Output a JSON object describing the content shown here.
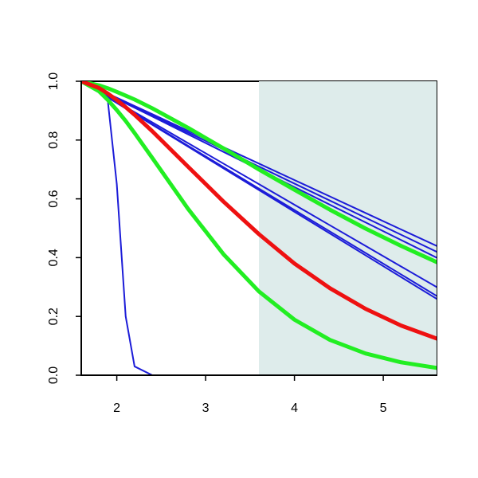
{
  "chart_data": {
    "type": "line",
    "x": [
      1.6,
      1.8,
      1.9,
      2.0,
      2.1,
      2.2,
      2.4,
      2.8,
      3.2,
      3.6,
      4.0,
      4.4,
      4.8,
      5.2,
      5.6
    ],
    "xlim": [
      1.6,
      5.6
    ],
    "xticks": [
      2,
      3,
      4,
      5
    ],
    "ylim": [
      0,
      1
    ],
    "yticks": [
      {
        "value": 0,
        "label": "0.0"
      },
      0.2,
      0.4,
      0.6,
      0.8,
      {
        "value": 1,
        "label": "1.0"
      }
    ],
    "shaded_region": {
      "xlim": [
        3.6,
        5.6
      ],
      "color": "#deeceb"
    },
    "series": [
      {
        "color": "#1c1cd8",
        "values": [
          1,
          0.99,
          0.93,
          0.65,
          0.2,
          0.03,
          0,
          0,
          0,
          0,
          0,
          0,
          0,
          0,
          0
        ]
      },
      {
        "color": "#1c1cd8",
        "values": [
          1,
          0.972,
          0.958,
          0.944,
          0.93,
          0.916,
          0.888,
          0.832,
          0.776,
          0.72,
          0.664,
          0.608,
          0.552,
          0.496,
          0.44
        ]
      },
      {
        "color": "#1c1cd8",
        "values": [
          1,
          0.971,
          0.9565,
          0.942,
          0.9275,
          0.913,
          0.884,
          0.826,
          0.768,
          0.71,
          0.652,
          0.594,
          0.536,
          0.478,
          0.42
        ]
      },
      {
        "color": "#1c1cd8",
        "values": [
          1,
          0.97,
          0.955,
          0.94,
          0.925,
          0.91,
          0.88,
          0.82,
          0.76,
          0.7,
          0.64,
          0.58,
          0.52,
          0.46,
          0.4
        ]
      },
      {
        "color": "#1c1cd8",
        "values": [
          1,
          0.965,
          0.9475,
          0.93,
          0.9125,
          0.895,
          0.86,
          0.79,
          0.72,
          0.65,
          0.58,
          0.51,
          0.44,
          0.37,
          0.3
        ]
      },
      {
        "color": "#1c1cd8",
        "values": [
          1,
          0.9635,
          0.94525,
          0.927,
          0.90875,
          0.8905,
          0.854,
          0.781,
          0.708,
          0.635,
          0.562,
          0.489,
          0.416,
          0.343,
          0.27
        ]
      },
      {
        "color": "#1c1cd8",
        "values": [
          1,
          0.963,
          0.9445,
          0.926,
          0.9075,
          0.889,
          0.852,
          0.778,
          0.704,
          0.63,
          0.556,
          0.482,
          0.408,
          0.334,
          0.26
        ]
      },
      {
        "color": "#22ee22",
        "values": [
          1,
          0.986,
          0.976,
          0.964,
          0.951,
          0.938,
          0.908,
          0.842,
          0.772,
          0.7,
          0.631,
          0.563,
          0.499,
          0.44,
          0.385
        ]
      },
      {
        "color": "#22ee22",
        "values": [
          1,
          0.966,
          0.936,
          0.902,
          0.865,
          0.824,
          0.739,
          0.567,
          0.412,
          0.285,
          0.189,
          0.12,
          0.074,
          0.044,
          0.025
        ]
      },
      {
        "color": "#ee1111",
        "values": [
          1,
          0.977,
          0.958,
          0.936,
          0.912,
          0.886,
          0.83,
          0.71,
          0.591,
          0.48,
          0.38,
          0.296,
          0.226,
          0.169,
          0.125
        ]
      }
    ]
  }
}
